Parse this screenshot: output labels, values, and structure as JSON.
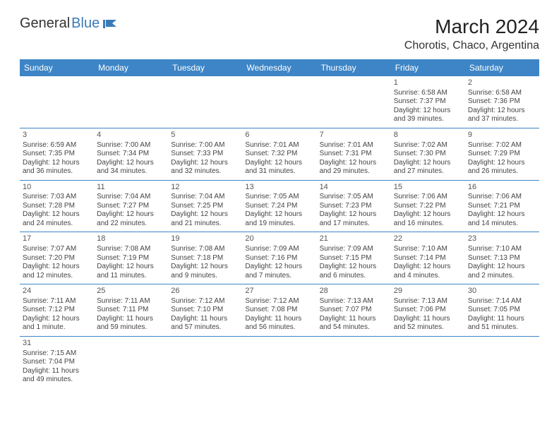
{
  "logo": {
    "text1": "General",
    "text2": "Blue"
  },
  "title": "March 2024",
  "location": "Chorotis, Chaco, Argentina",
  "colors": {
    "accent": "#3d85c6",
    "logo_blue": "#3a7ab8",
    "text": "#333333",
    "cell_text": "#444444"
  },
  "day_headers": [
    "Sunday",
    "Monday",
    "Tuesday",
    "Wednesday",
    "Thursday",
    "Friday",
    "Saturday"
  ],
  "weeks": [
    [
      null,
      null,
      null,
      null,
      null,
      {
        "n": "1",
        "sr": "Sunrise: 6:58 AM",
        "ss": "Sunset: 7:37 PM",
        "dl": "Daylight: 12 hours and 39 minutes."
      },
      {
        "n": "2",
        "sr": "Sunrise: 6:58 AM",
        "ss": "Sunset: 7:36 PM",
        "dl": "Daylight: 12 hours and 37 minutes."
      }
    ],
    [
      {
        "n": "3",
        "sr": "Sunrise: 6:59 AM",
        "ss": "Sunset: 7:35 PM",
        "dl": "Daylight: 12 hours and 36 minutes."
      },
      {
        "n": "4",
        "sr": "Sunrise: 7:00 AM",
        "ss": "Sunset: 7:34 PM",
        "dl": "Daylight: 12 hours and 34 minutes."
      },
      {
        "n": "5",
        "sr": "Sunrise: 7:00 AM",
        "ss": "Sunset: 7:33 PM",
        "dl": "Daylight: 12 hours and 32 minutes."
      },
      {
        "n": "6",
        "sr": "Sunrise: 7:01 AM",
        "ss": "Sunset: 7:32 PM",
        "dl": "Daylight: 12 hours and 31 minutes."
      },
      {
        "n": "7",
        "sr": "Sunrise: 7:01 AM",
        "ss": "Sunset: 7:31 PM",
        "dl": "Daylight: 12 hours and 29 minutes."
      },
      {
        "n": "8",
        "sr": "Sunrise: 7:02 AM",
        "ss": "Sunset: 7:30 PM",
        "dl": "Daylight: 12 hours and 27 minutes."
      },
      {
        "n": "9",
        "sr": "Sunrise: 7:02 AM",
        "ss": "Sunset: 7:29 PM",
        "dl": "Daylight: 12 hours and 26 minutes."
      }
    ],
    [
      {
        "n": "10",
        "sr": "Sunrise: 7:03 AM",
        "ss": "Sunset: 7:28 PM",
        "dl": "Daylight: 12 hours and 24 minutes."
      },
      {
        "n": "11",
        "sr": "Sunrise: 7:04 AM",
        "ss": "Sunset: 7:27 PM",
        "dl": "Daylight: 12 hours and 22 minutes."
      },
      {
        "n": "12",
        "sr": "Sunrise: 7:04 AM",
        "ss": "Sunset: 7:25 PM",
        "dl": "Daylight: 12 hours and 21 minutes."
      },
      {
        "n": "13",
        "sr": "Sunrise: 7:05 AM",
        "ss": "Sunset: 7:24 PM",
        "dl": "Daylight: 12 hours and 19 minutes."
      },
      {
        "n": "14",
        "sr": "Sunrise: 7:05 AM",
        "ss": "Sunset: 7:23 PM",
        "dl": "Daylight: 12 hours and 17 minutes."
      },
      {
        "n": "15",
        "sr": "Sunrise: 7:06 AM",
        "ss": "Sunset: 7:22 PM",
        "dl": "Daylight: 12 hours and 16 minutes."
      },
      {
        "n": "16",
        "sr": "Sunrise: 7:06 AM",
        "ss": "Sunset: 7:21 PM",
        "dl": "Daylight: 12 hours and 14 minutes."
      }
    ],
    [
      {
        "n": "17",
        "sr": "Sunrise: 7:07 AM",
        "ss": "Sunset: 7:20 PM",
        "dl": "Daylight: 12 hours and 12 minutes."
      },
      {
        "n": "18",
        "sr": "Sunrise: 7:08 AM",
        "ss": "Sunset: 7:19 PM",
        "dl": "Daylight: 12 hours and 11 minutes."
      },
      {
        "n": "19",
        "sr": "Sunrise: 7:08 AM",
        "ss": "Sunset: 7:18 PM",
        "dl": "Daylight: 12 hours and 9 minutes."
      },
      {
        "n": "20",
        "sr": "Sunrise: 7:09 AM",
        "ss": "Sunset: 7:16 PM",
        "dl": "Daylight: 12 hours and 7 minutes."
      },
      {
        "n": "21",
        "sr": "Sunrise: 7:09 AM",
        "ss": "Sunset: 7:15 PM",
        "dl": "Daylight: 12 hours and 6 minutes."
      },
      {
        "n": "22",
        "sr": "Sunrise: 7:10 AM",
        "ss": "Sunset: 7:14 PM",
        "dl": "Daylight: 12 hours and 4 minutes."
      },
      {
        "n": "23",
        "sr": "Sunrise: 7:10 AM",
        "ss": "Sunset: 7:13 PM",
        "dl": "Daylight: 12 hours and 2 minutes."
      }
    ],
    [
      {
        "n": "24",
        "sr": "Sunrise: 7:11 AM",
        "ss": "Sunset: 7:12 PM",
        "dl": "Daylight: 12 hours and 1 minute."
      },
      {
        "n": "25",
        "sr": "Sunrise: 7:11 AM",
        "ss": "Sunset: 7:11 PM",
        "dl": "Daylight: 11 hours and 59 minutes."
      },
      {
        "n": "26",
        "sr": "Sunrise: 7:12 AM",
        "ss": "Sunset: 7:10 PM",
        "dl": "Daylight: 11 hours and 57 minutes."
      },
      {
        "n": "27",
        "sr": "Sunrise: 7:12 AM",
        "ss": "Sunset: 7:08 PM",
        "dl": "Daylight: 11 hours and 56 minutes."
      },
      {
        "n": "28",
        "sr": "Sunrise: 7:13 AM",
        "ss": "Sunset: 7:07 PM",
        "dl": "Daylight: 11 hours and 54 minutes."
      },
      {
        "n": "29",
        "sr": "Sunrise: 7:13 AM",
        "ss": "Sunset: 7:06 PM",
        "dl": "Daylight: 11 hours and 52 minutes."
      },
      {
        "n": "30",
        "sr": "Sunrise: 7:14 AM",
        "ss": "Sunset: 7:05 PM",
        "dl": "Daylight: 11 hours and 51 minutes."
      }
    ],
    [
      {
        "n": "31",
        "sr": "Sunrise: 7:15 AM",
        "ss": "Sunset: 7:04 PM",
        "dl": "Daylight: 11 hours and 49 minutes."
      },
      null,
      null,
      null,
      null,
      null,
      null
    ]
  ]
}
